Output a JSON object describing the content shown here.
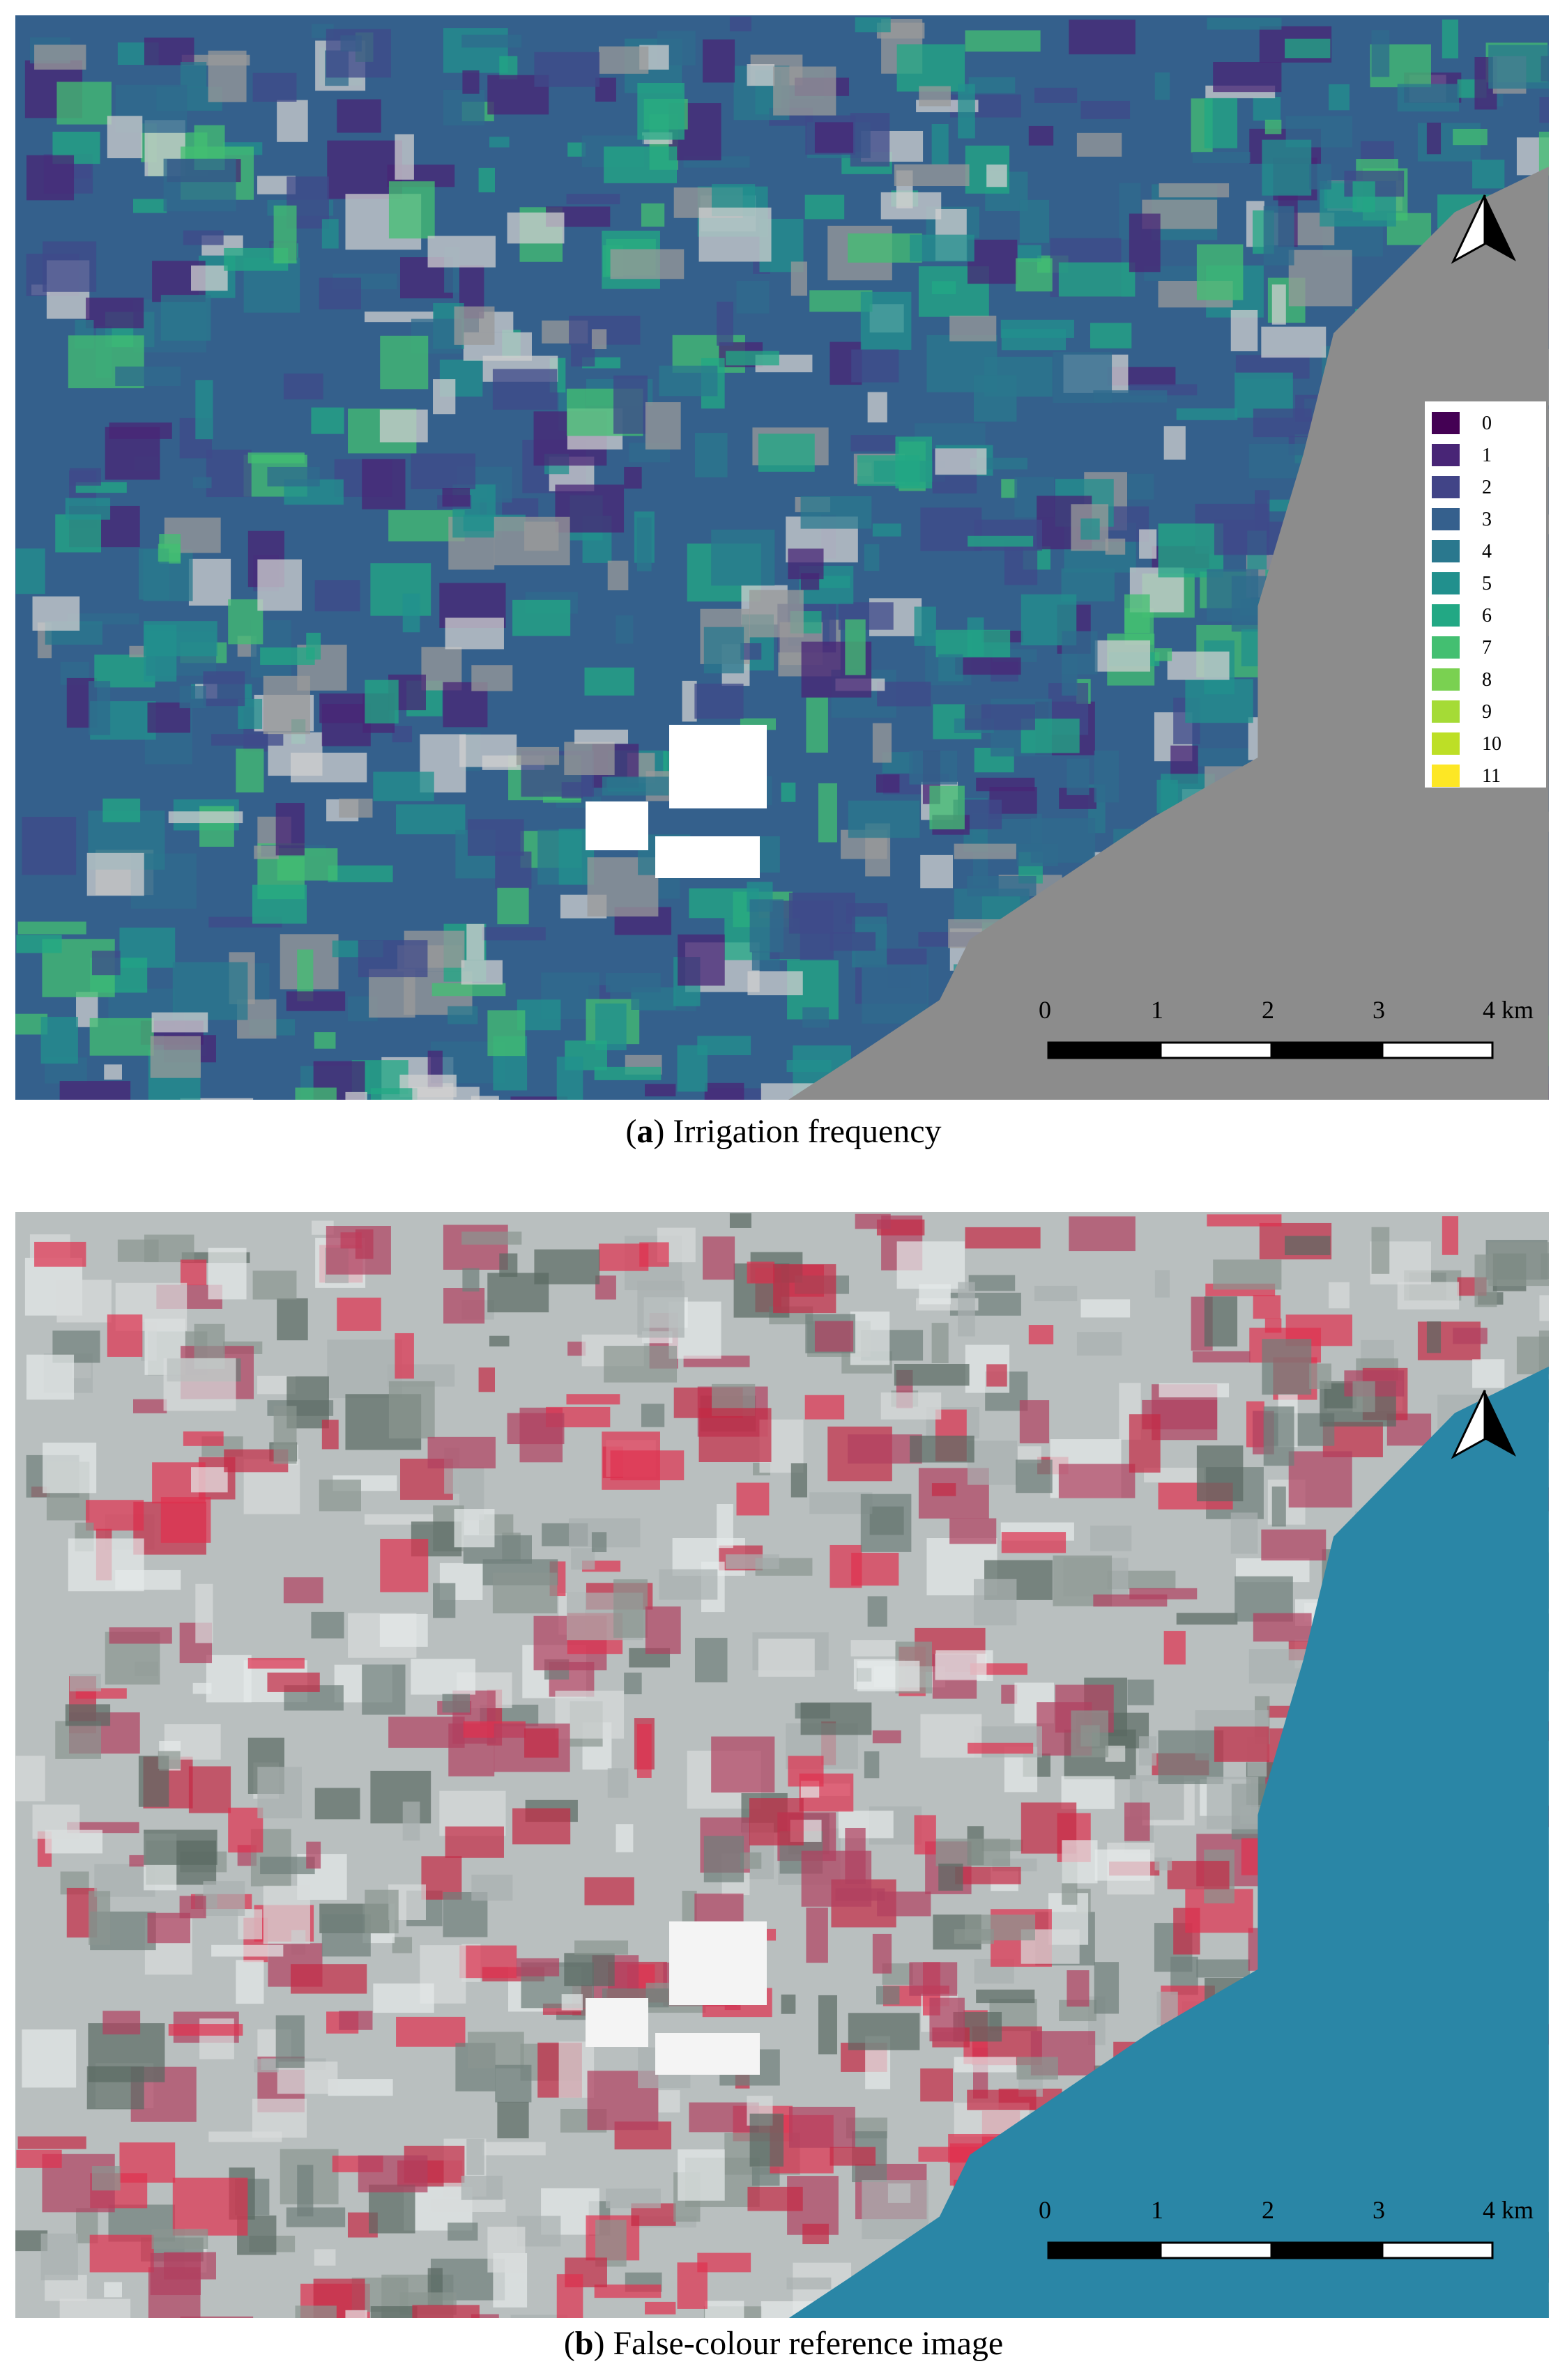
{
  "panels": [
    {
      "caption_parts": [
        "(",
        "a",
        ") Irrigation frequency"
      ],
      "legend": {
        "items": [
          {
            "label": "0",
            "color": "#440154"
          },
          {
            "label": "1",
            "color": "#482576"
          },
          {
            "label": "2",
            "color": "#414487"
          },
          {
            "label": "3",
            "color": "#35608d"
          },
          {
            "label": "4",
            "color": "#2a788e"
          },
          {
            "label": "5",
            "color": "#21908d"
          },
          {
            "label": "6",
            "color": "#22a884"
          },
          {
            "label": "7",
            "color": "#43bf71"
          },
          {
            "label": "8",
            "color": "#7ad151"
          },
          {
            "label": "9",
            "color": "#a5db36"
          },
          {
            "label": "10",
            "color": "#bddf26"
          },
          {
            "label": "11",
            "color": "#fde725"
          }
        ]
      },
      "scale_bar": [
        "0",
        "1",
        "2",
        "3",
        "4 km"
      ]
    },
    {
      "caption_parts": [
        "(",
        "b",
        ") False-colour reference image"
      ],
      "scale_bar": [
        "0",
        "1",
        "2",
        "3",
        "4 km"
      ]
    }
  ]
}
